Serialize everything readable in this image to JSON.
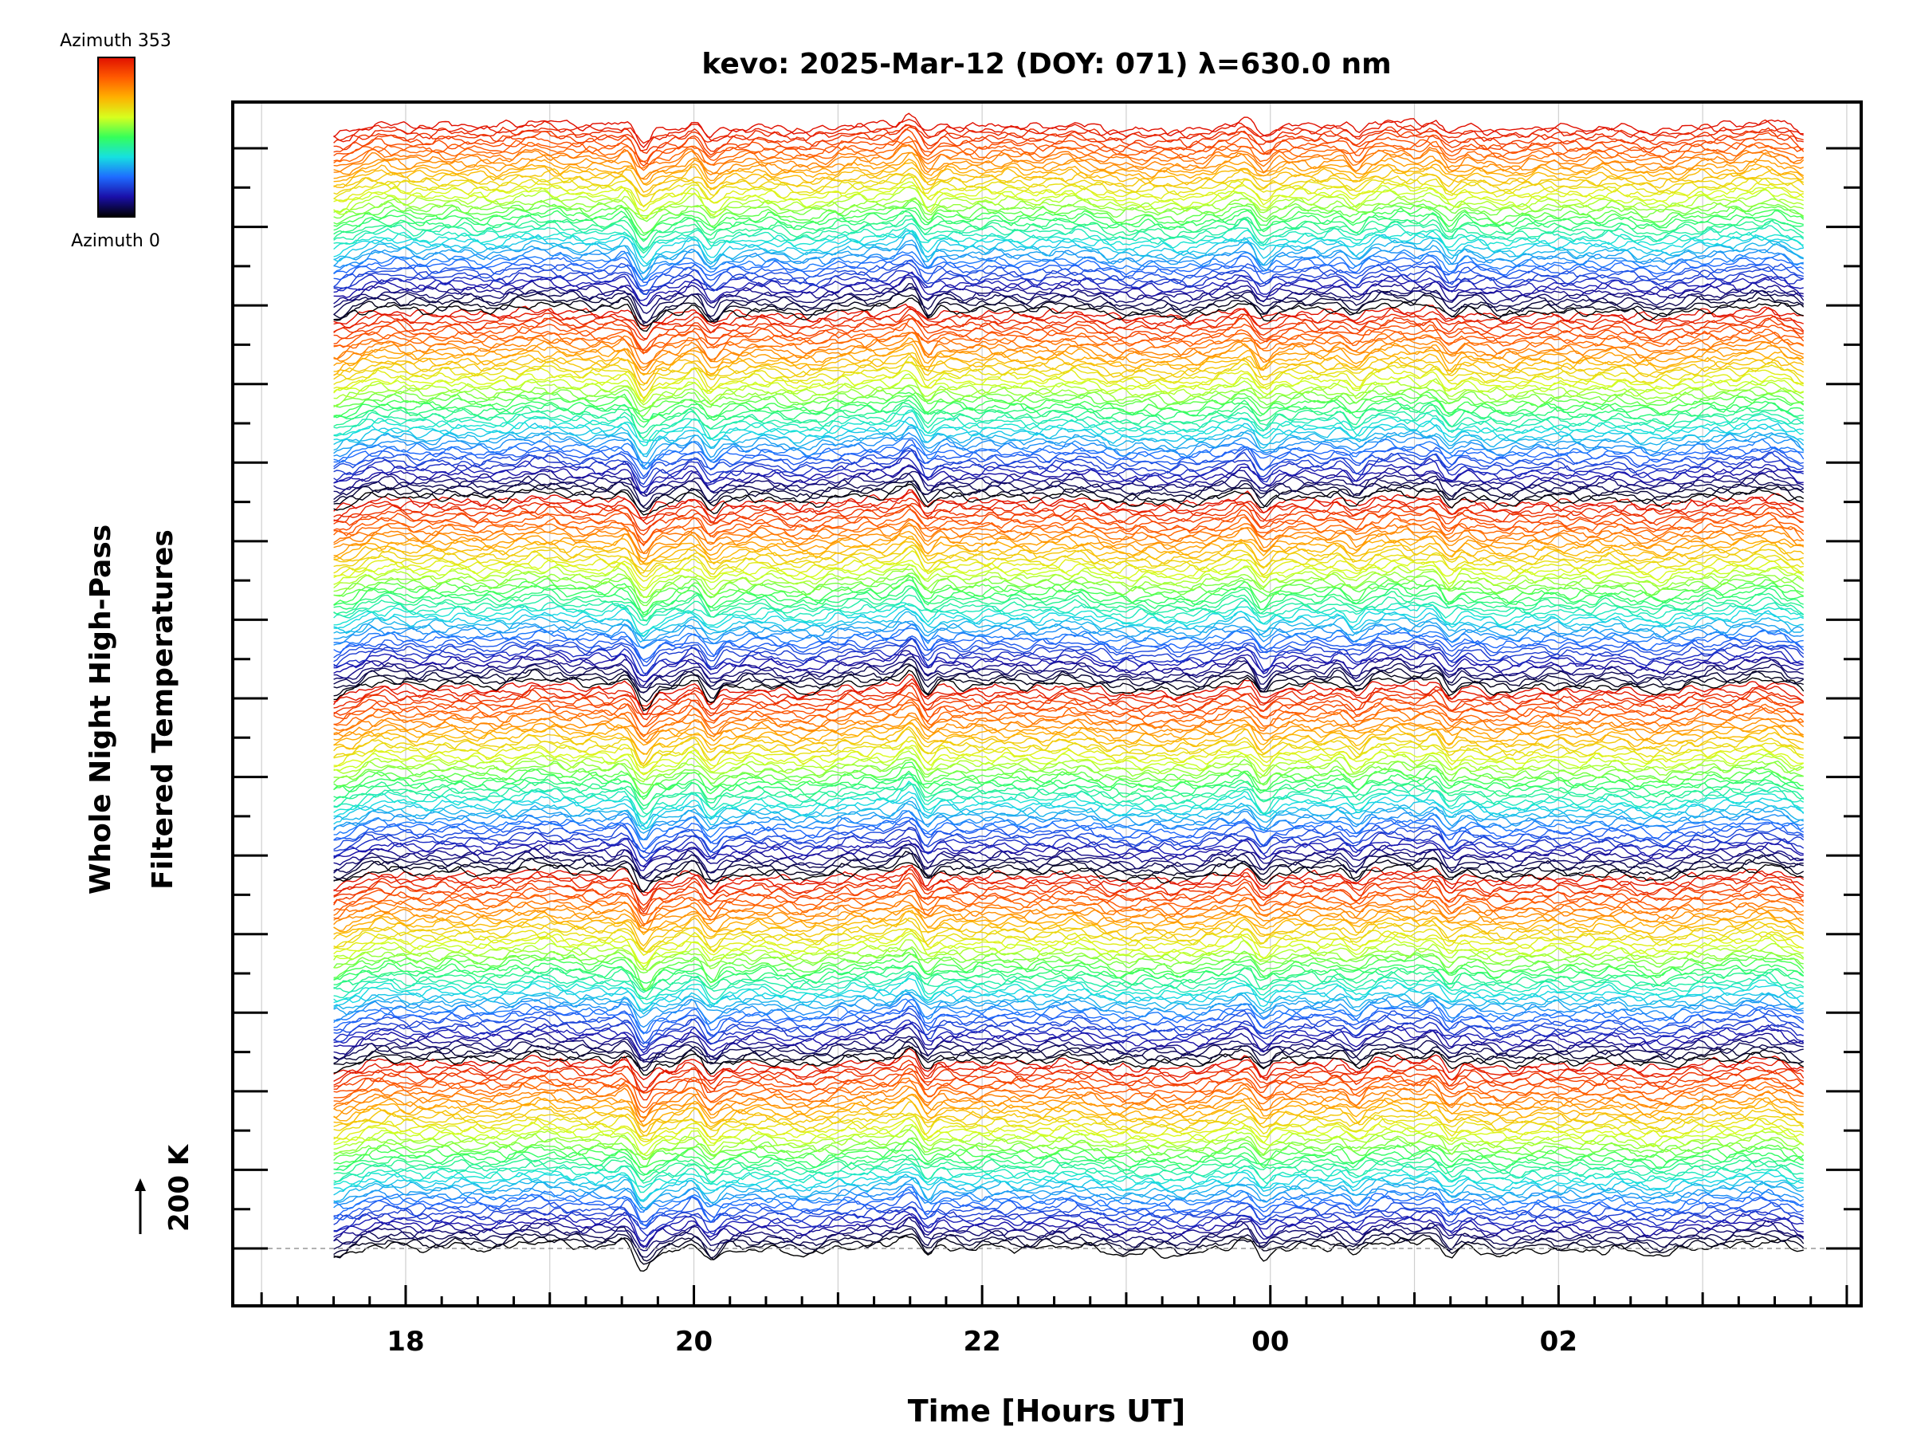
{
  "chart_data": {
    "type": "line",
    "title": "kevo: 2025-Mar-12 (DOY: 071) λ=630.0 nm",
    "xlabel": "Time [Hours UT]",
    "ylabel_line1": "Whole Night High-Pass",
    "ylabel_line2": "Filtered Temperatures",
    "scale_bar_label": "200 K",
    "colorbar": {
      "top_label": "Azimuth 353",
      "bottom_label": "Azimuth 0",
      "colormap": [
        "#000000",
        "#1a0fa8",
        "#1e6cff",
        "#16e0e0",
        "#35ff5a",
        "#d7ff1e",
        "#ffb000",
        "#ff5a00",
        "#e01000"
      ]
    },
    "x_axis": {
      "min_hour_elapsed": 16.8,
      "max_hour_elapsed": 28.1,
      "tick_hours_elapsed": [
        18,
        20,
        22,
        24,
        26
      ],
      "tick_labels": [
        "18",
        "20",
        "22",
        "00",
        "02"
      ],
      "data_start_hour": 17.5,
      "data_end_hour": 27.7
    },
    "y_axis": {
      "min": 0,
      "max": 1,
      "major_tick_count": 15,
      "tick_labels": []
    },
    "grid": true,
    "traces_per_cycle": 50,
    "cycles": 6,
    "events": [
      {
        "hour": 19.65,
        "depth": 1.0
      },
      {
        "hour": 20.12,
        "depth": 0.8
      },
      {
        "hour": 21.62,
        "depth": 0.95
      },
      {
        "hour": 23.95,
        "depth": 0.7
      },
      {
        "hour": 24.6,
        "depth": 0.5
      },
      {
        "hour": 25.25,
        "depth": 0.7
      }
    ]
  }
}
